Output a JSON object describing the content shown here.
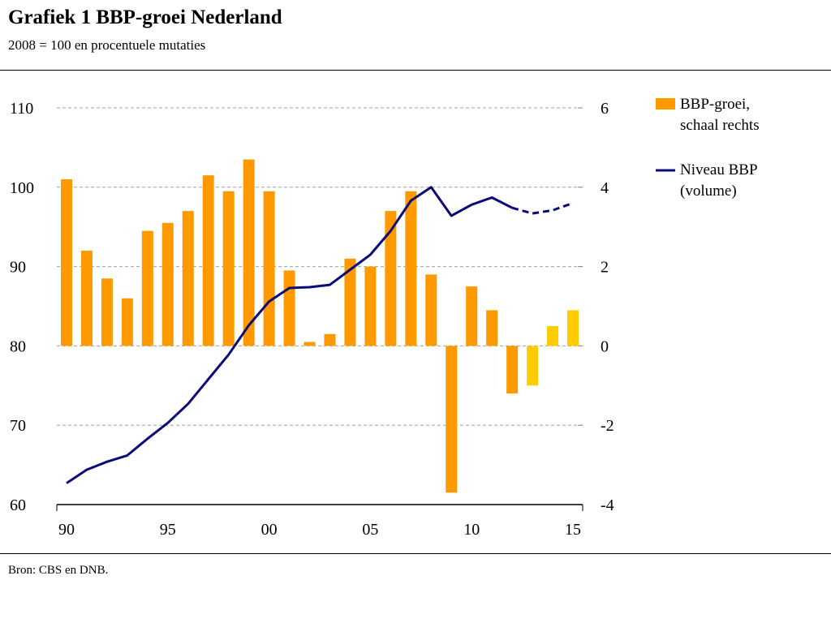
{
  "header": {
    "title": "Grafiek 1 BBP-groei Nederland",
    "subtitle": "2008 = 100 en procentuele mutaties"
  },
  "footer": {
    "source": "Bron: CBS en DNB."
  },
  "colors": {
    "bar": "#FF9900",
    "bar_forecast": "#FFCC00",
    "line": "#0A0A78",
    "grid": "#A0A0A0"
  },
  "chart_data": {
    "type": "bar+line",
    "categories": [
      1990,
      1991,
      1992,
      1993,
      1994,
      1995,
      1996,
      1997,
      1998,
      1999,
      2000,
      2001,
      2002,
      2003,
      2004,
      2005,
      2006,
      2007,
      2008,
      2009,
      2010,
      2011,
      2012,
      2013,
      2014,
      2015
    ],
    "x_tick_labels": [
      "90",
      "95",
      "00",
      "05",
      "10",
      "15"
    ],
    "left_axis": {
      "ylim": [
        60,
        110
      ],
      "ticks": [
        "60",
        "70",
        "80",
        "90",
        "100",
        "110"
      ]
    },
    "right_axis": {
      "ylim": [
        -4,
        6
      ],
      "ticks": [
        "-4",
        "-2",
        "0",
        "2",
        "4",
        "6"
      ]
    },
    "grid": true,
    "legend_placement": "right",
    "series": [
      {
        "name": "BBP-groei, schaal rechts",
        "legend_lines": [
          "BBP-groei,",
          "schaal rechts"
        ],
        "type": "bar",
        "axis": "right",
        "values": [
          4.2,
          2.4,
          1.7,
          1.2,
          2.9,
          3.1,
          3.4,
          4.3,
          3.9,
          4.7,
          3.9,
          1.9,
          0.1,
          0.3,
          2.2,
          2.0,
          3.4,
          3.9,
          1.8,
          -3.7,
          1.5,
          0.9,
          -1.2,
          -1.0,
          0.5,
          0.9
        ],
        "forecast_from": 2013
      },
      {
        "name": "Niveau BBP (volume)",
        "legend_lines": [
          "Niveau BBP",
          "(volume)"
        ],
        "type": "line",
        "axis": "left",
        "values": [
          62.7,
          64.4,
          65.4,
          66.2,
          68.3,
          70.3,
          72.7,
          75.8,
          78.9,
          82.6,
          85.6,
          87.3,
          87.4,
          87.7,
          89.6,
          91.5,
          94.5,
          98.3,
          100.0,
          96.4,
          97.8,
          98.7,
          97.4,
          96.7,
          97.1,
          98.0
        ],
        "dashed_from": 2012
      }
    ]
  }
}
